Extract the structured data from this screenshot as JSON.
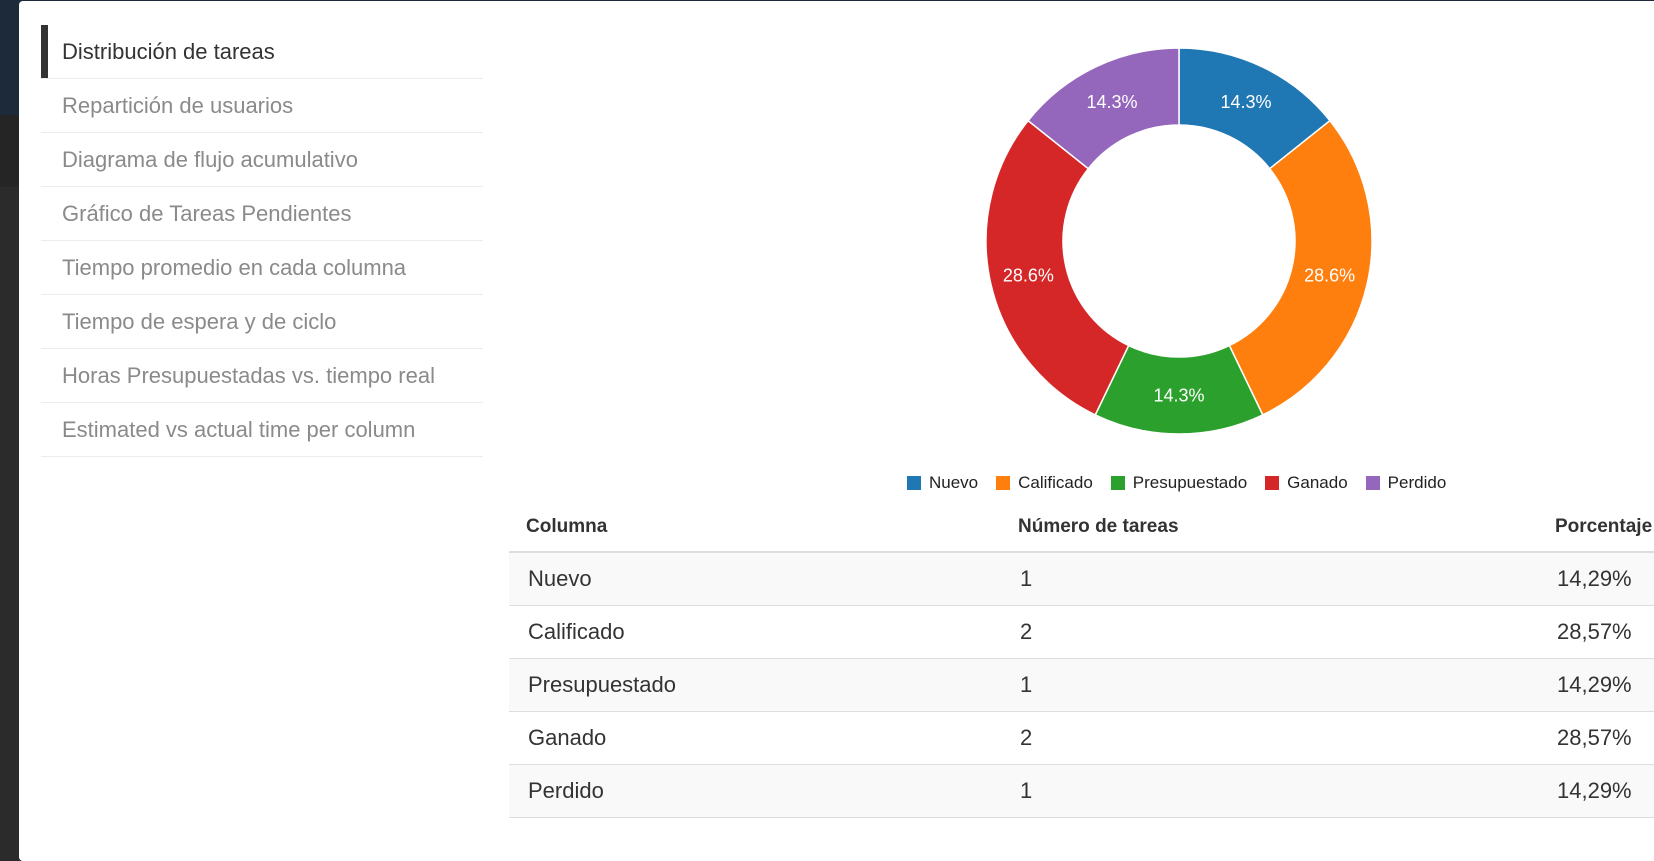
{
  "sidebar": {
    "items": [
      {
        "label": "Distribución de tareas",
        "active": true
      },
      {
        "label": "Repartición de usuarios",
        "active": false
      },
      {
        "label": "Diagrama de flujo acumulativo",
        "active": false
      },
      {
        "label": "Gráfico de Tareas Pendientes",
        "active": false
      },
      {
        "label": "Tiempo promedio en cada columna",
        "active": false
      },
      {
        "label": "Tiempo de espera y de ciclo",
        "active": false
      },
      {
        "label": "Horas Presupuestadas vs. tiempo real",
        "active": false
      },
      {
        "label": "Estimated vs actual time per column",
        "active": false
      }
    ]
  },
  "chart_data": {
    "type": "pie",
    "donut": true,
    "categories": [
      "Nuevo",
      "Calificado",
      "Presupuestado",
      "Ganado",
      "Perdido"
    ],
    "values": [
      1,
      2,
      1,
      2,
      1
    ],
    "slice_labels": [
      "14.3%",
      "28.6%",
      "14.3%",
      "28.6%",
      "14.3%"
    ],
    "colors": [
      "#1f77b4",
      "#ff7f0e",
      "#2ca02c",
      "#d62728",
      "#9467bd"
    ],
    "legend_position": "bottom",
    "title": ""
  },
  "table": {
    "headers": [
      "Columna",
      "Número de tareas",
      "Porcentaje"
    ],
    "rows": [
      [
        "Nuevo",
        "1",
        "14,29%"
      ],
      [
        "Calificado",
        "2",
        "28,57%"
      ],
      [
        "Presupuestado",
        "1",
        "14,29%"
      ],
      [
        "Ganado",
        "2",
        "28,57%"
      ],
      [
        "Perdido",
        "1",
        "14,29%"
      ]
    ]
  }
}
